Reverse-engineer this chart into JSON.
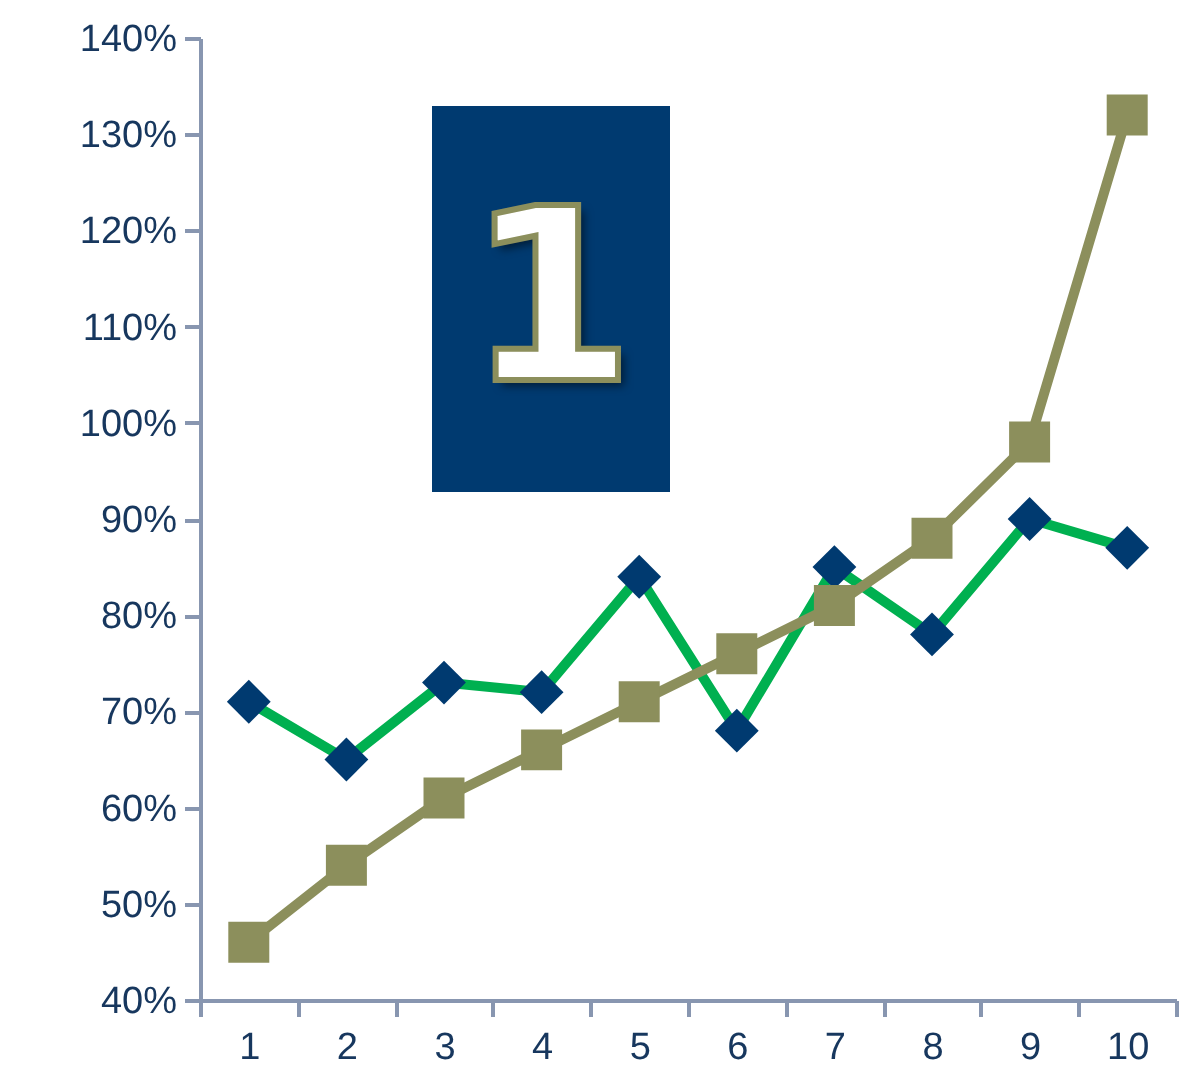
{
  "chart_data": {
    "type": "line",
    "categories": [
      "1",
      "2",
      "3",
      "4",
      "5",
      "6",
      "7",
      "8",
      "9",
      "10"
    ],
    "series": [
      {
        "color": "#00b050",
        "marker": "diamond",
        "values": [
          71,
          65,
          73,
          72,
          84,
          68,
          85,
          78,
          90,
          87
        ]
      },
      {
        "color": "#8c8f5c",
        "marker": "square",
        "values": [
          46,
          54,
          61,
          66,
          71,
          76,
          81,
          88,
          98,
          132
        ]
      }
    ],
    "ylim": [
      40,
      140
    ],
    "yticks": [
      {
        "value": 40,
        "label": "40%"
      },
      {
        "value": 50,
        "label": "50%"
      },
      {
        "value": 60,
        "label": "60%"
      },
      {
        "value": 70,
        "label": "70%"
      },
      {
        "value": 80,
        "label": "80%"
      },
      {
        "value": 90,
        "label": "90%"
      },
      {
        "value": 100,
        "label": "100%"
      },
      {
        "value": 110,
        "label": "110%"
      },
      {
        "value": 120,
        "label": "120%"
      },
      {
        "value": 130,
        "label": "130%"
      },
      {
        "value": 140,
        "label": "140%"
      }
    ],
    "annotations": [
      "1"
    ],
    "grid": false,
    "line_style": "solid"
  }
}
